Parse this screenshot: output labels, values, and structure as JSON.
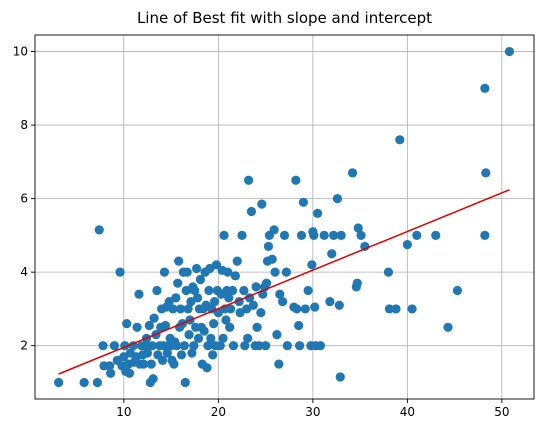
{
  "chart_data": {
    "type": "scatter",
    "title": "Line of Best fit with slope and intercept",
    "xlabel": "",
    "ylabel": "",
    "xlim": [
      0.6,
      53.4
    ],
    "ylim": [
      0.55,
      10.45
    ],
    "xticks": [
      10,
      20,
      30,
      40,
      50
    ],
    "yticks": [
      2,
      4,
      6,
      8,
      10
    ],
    "grid": true,
    "colors": {
      "points": "#1f77b4",
      "line": "#e00000"
    },
    "points": [
      [
        3.1,
        1.0
      ],
      [
        5.8,
        1.0
      ],
      [
        7.2,
        1.0
      ],
      [
        7.4,
        5.15
      ],
      [
        7.8,
        2.0
      ],
      [
        7.9,
        1.45
      ],
      [
        8.5,
        1.45
      ],
      [
        8.6,
        1.25
      ],
      [
        9.0,
        2.0
      ],
      [
        9.3,
        1.6
      ],
      [
        9.6,
        4.0
      ],
      [
        9.8,
        1.45
      ],
      [
        10.0,
        1.7
      ],
      [
        10.1,
        2.0
      ],
      [
        10.2,
        1.3
      ],
      [
        10.3,
        2.6
      ],
      [
        10.5,
        1.5
      ],
      [
        10.6,
        1.25
      ],
      [
        10.7,
        1.8
      ],
      [
        11.0,
        2.0
      ],
      [
        11.1,
        1.55
      ],
      [
        11.3,
        1.7
      ],
      [
        11.4,
        2.5
      ],
      [
        11.6,
        3.4
      ],
      [
        11.7,
        1.5
      ],
      [
        11.9,
        2.0
      ],
      [
        12.0,
        1.75
      ],
      [
        12.1,
        1.5
      ],
      [
        12.3,
        2.0
      ],
      [
        12.4,
        2.2
      ],
      [
        12.5,
        1.8
      ],
      [
        12.7,
        2.55
      ],
      [
        12.8,
        1.0
      ],
      [
        12.9,
        1.5
      ],
      [
        13.0,
        2.0
      ],
      [
        13.1,
        1.1
      ],
      [
        13.2,
        2.75
      ],
      [
        13.4,
        2.3
      ],
      [
        13.5,
        3.5
      ],
      [
        13.6,
        1.75
      ],
      [
        13.8,
        2.0
      ],
      [
        13.9,
        2.5
      ],
      [
        14.0,
        3.0
      ],
      [
        14.1,
        1.6
      ],
      [
        14.2,
        2.0
      ],
      [
        14.3,
        4.0
      ],
      [
        14.4,
        2.55
      ],
      [
        14.5,
        3.05
      ],
      [
        14.6,
        1.8
      ],
      [
        14.7,
        2.0
      ],
      [
        14.8,
        3.2
      ],
      [
        14.9,
        2.2
      ],
      [
        15.0,
        2.0
      ],
      [
        15.1,
        1.6
      ],
      [
        15.2,
        3.0
      ],
      [
        15.3,
        1.5
      ],
      [
        15.4,
        2.1
      ],
      [
        15.5,
        3.3
      ],
      [
        15.6,
        2.0
      ],
      [
        15.7,
        3.7
      ],
      [
        15.8,
        4.3
      ],
      [
        15.9,
        2.5
      ],
      [
        16.0,
        3.0
      ],
      [
        16.1,
        1.75
      ],
      [
        16.2,
        2.6
      ],
      [
        16.3,
        4.0
      ],
      [
        16.4,
        2.0
      ],
      [
        16.5,
        1.0
      ],
      [
        16.6,
        3.5
      ],
      [
        16.7,
        4.0
      ],
      [
        16.8,
        3.0
      ],
      [
        16.9,
        2.3
      ],
      [
        17.0,
        2.7
      ],
      [
        17.1,
        3.2
      ],
      [
        17.2,
        1.8
      ],
      [
        17.3,
        3.6
      ],
      [
        17.4,
        2.0
      ],
      [
        17.5,
        3.5
      ],
      [
        17.6,
        2.5
      ],
      [
        17.7,
        4.1
      ],
      [
        17.8,
        3.3
      ],
      [
        17.9,
        2.2
      ],
      [
        18.0,
        3.0
      ],
      [
        18.1,
        3.8
      ],
      [
        18.2,
        2.5
      ],
      [
        18.3,
        1.5
      ],
      [
        18.4,
        3.0
      ],
      [
        18.5,
        2.4
      ],
      [
        18.6,
        4.0
      ],
      [
        18.7,
        3.1
      ],
      [
        18.8,
        1.4
      ],
      [
        18.9,
        2.0
      ],
      [
        19.0,
        3.5
      ],
      [
        19.1,
        4.1
      ],
      [
        19.2,
        2.2
      ],
      [
        19.3,
        3.0
      ],
      [
        19.4,
        1.75
      ],
      [
        19.5,
        2.6
      ],
      [
        19.6,
        3.2
      ],
      [
        19.7,
        2.0
      ],
      [
        19.8,
        4.2
      ],
      [
        19.9,
        3.5
      ],
      [
        20.0,
        2.9
      ],
      [
        20.2,
        2.0
      ],
      [
        20.3,
        3.4
      ],
      [
        20.4,
        4.05
      ],
      [
        20.5,
        2.2
      ],
      [
        20.6,
        5.0
      ],
      [
        20.7,
        3.0
      ],
      [
        20.8,
        2.7
      ],
      [
        20.9,
        3.5
      ],
      [
        21.0,
        4.0
      ],
      [
        21.1,
        3.3
      ],
      [
        21.2,
        2.5
      ],
      [
        21.3,
        3.0
      ],
      [
        21.5,
        3.5
      ],
      [
        21.6,
        2.0
      ],
      [
        21.8,
        3.9
      ],
      [
        22.0,
        4.3
      ],
      [
        22.2,
        3.2
      ],
      [
        22.3,
        2.9
      ],
      [
        22.5,
        5.0
      ],
      [
        22.7,
        3.5
      ],
      [
        22.8,
        2.0
      ],
      [
        23.0,
        3.0
      ],
      [
        23.1,
        2.2
      ],
      [
        23.2,
        6.5
      ],
      [
        23.3,
        3.3
      ],
      [
        23.5,
        5.65
      ],
      [
        23.7,
        3.1
      ],
      [
        23.9,
        2.0
      ],
      [
        24.0,
        3.6
      ],
      [
        24.1,
        2.5
      ],
      [
        24.3,
        2.0
      ],
      [
        24.5,
        2.9
      ],
      [
        24.6,
        5.85
      ],
      [
        24.7,
        3.4
      ],
      [
        24.9,
        3.6
      ],
      [
        25.0,
        2.0
      ],
      [
        25.1,
        3.7
      ],
      [
        25.2,
        4.3
      ],
      [
        25.3,
        4.7
      ],
      [
        25.4,
        5.0
      ],
      [
        25.7,
        4.35
      ],
      [
        25.9,
        5.15
      ],
      [
        26.0,
        4.0
      ],
      [
        26.2,
        2.3
      ],
      [
        26.4,
        1.5
      ],
      [
        26.5,
        3.4
      ],
      [
        26.8,
        3.2
      ],
      [
        27.0,
        5.0
      ],
      [
        27.2,
        4.0
      ],
      [
        27.3,
        2.0
      ],
      [
        28.0,
        3.05
      ],
      [
        28.2,
        6.5
      ],
      [
        28.3,
        3.0
      ],
      [
        28.5,
        2.55
      ],
      [
        28.6,
        2.0
      ],
      [
        28.8,
        5.0
      ],
      [
        29.0,
        5.9
      ],
      [
        29.2,
        3.0
      ],
      [
        29.5,
        3.5
      ],
      [
        29.8,
        2.0
      ],
      [
        29.9,
        4.2
      ],
      [
        30.0,
        5.1
      ],
      [
        30.1,
        5.0
      ],
      [
        30.2,
        3.05
      ],
      [
        30.3,
        2.0
      ],
      [
        30.5,
        5.6
      ],
      [
        30.8,
        2.0
      ],
      [
        31.2,
        5.0
      ],
      [
        31.8,
        3.2
      ],
      [
        32.0,
        4.5
      ],
      [
        32.2,
        5.0
      ],
      [
        32.6,
        6.0
      ],
      [
        32.8,
        3.1
      ],
      [
        32.9,
        1.15
      ],
      [
        33.0,
        5.0
      ],
      [
        34.2,
        6.7
      ],
      [
        34.6,
        3.6
      ],
      [
        34.7,
        3.7
      ],
      [
        34.8,
        5.2
      ],
      [
        35.1,
        5.0
      ],
      [
        35.5,
        4.7
      ],
      [
        38.0,
        4.0
      ],
      [
        38.1,
        3.0
      ],
      [
        38.8,
        3.0
      ],
      [
        39.2,
        7.6
      ],
      [
        40.0,
        4.75
      ],
      [
        40.5,
        3.0
      ],
      [
        41.0,
        5.0
      ],
      [
        43.0,
        5.0
      ],
      [
        44.3,
        2.5
      ],
      [
        45.3,
        3.5
      ],
      [
        48.2,
        9.0
      ],
      [
        48.3,
        6.7
      ],
      [
        48.2,
        5.0
      ],
      [
        50.8,
        10.0
      ]
    ],
    "fit_line": {
      "slope": 0.105,
      "intercept": 0.9,
      "x": [
        3.1,
        50.8
      ],
      "y": [
        1.23,
        6.24
      ]
    }
  }
}
